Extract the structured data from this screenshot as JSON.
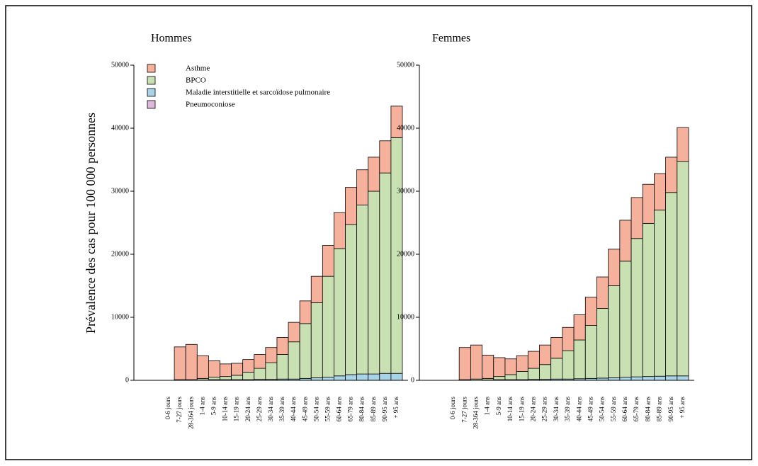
{
  "chart_data": [
    {
      "type": "bar",
      "title": "Hommes",
      "y_label": "Prévalence des cas pour 100 000 personnes",
      "categories": [
        "0-6 jours",
        "7-27 jours",
        "28-364 jours",
        "1-4 ans",
        "5-9 ans",
        "10-14 ans",
        "15-19 ans",
        "20-24 ans",
        "25-29 ans",
        "30-34 ans",
        "35-39 ans",
        "40-44 ans",
        "45-49 ans",
        "50-54 ans",
        "55-59 ans",
        "60-64 ans",
        "65-79 ans",
        "80-84 ans",
        "85-89 ans",
        "90-95 ans",
        "+ 95 ans"
      ],
      "ylim": [
        0,
        50000
      ],
      "yticks": [
        0,
        10000,
        20000,
        30000,
        40000,
        50000
      ],
      "legend": "top-left",
      "stacked": true,
      "series": [
        {
          "name": "Pneumoconiose",
          "color": "#dcb8dc",
          "values": [
            null,
            0,
            0,
            0,
            0,
            0,
            0,
            0,
            0,
            0,
            0,
            0,
            0,
            0,
            0,
            0,
            0,
            0,
            0,
            0,
            0
          ]
        },
        {
          "name": "Maladie interstitielle et sarcoïdose pulmonaire",
          "color": "#a9d3e6",
          "values": [
            null,
            0,
            0,
            50,
            100,
            100,
            100,
            100,
            150,
            150,
            200,
            200,
            300,
            400,
            500,
            700,
            900,
            1000,
            1000,
            1100,
            1100
          ]
        },
        {
          "name": "BPCO",
          "color": "#c8e0b2",
          "values": [
            null,
            100,
            100,
            250,
            400,
            500,
            700,
            1200,
            1750,
            2650,
            3900,
            5900,
            8700,
            11900,
            16000,
            20200,
            23800,
            26800,
            29000,
            31800,
            37400
          ]
        },
        {
          "name": "Asthme",
          "color": "#f5b19b",
          "values": [
            null,
            5200,
            5600,
            3600,
            2600,
            2000,
            1900,
            2000,
            2200,
            2400,
            2700,
            3100,
            3600,
            4200,
            4900,
            5700,
            5900,
            5600,
            5400,
            5100,
            5000
          ]
        }
      ]
    },
    {
      "type": "bar",
      "title": "Femmes",
      "categories": [
        "0-6 jours",
        "7-27 jours",
        "28-364 jours",
        "1-4 ans",
        "5-9 ans",
        "10-14 ans",
        "15-19 ans",
        "20-24 ans",
        "25-29 ans",
        "30-34 ans",
        "35-39 ans",
        "40-44 ans",
        "45-49 ans",
        "50-54 ans",
        "55-59 ans",
        "60-64 ans",
        "65-79 ans",
        "80-84 ans",
        "85-89 ans",
        "90-95 ans",
        "+ 95 ans"
      ],
      "ylim": [
        0,
        50000
      ],
      "yticks": [
        0,
        10000,
        20000,
        30000,
        40000,
        50000
      ],
      "stacked": true,
      "series": [
        {
          "color": "#dcb8dc",
          "values": [
            null,
            0,
            0,
            0,
            0,
            0,
            0,
            0,
            0,
            0,
            0,
            0,
            0,
            0,
            0,
            0,
            0,
            0,
            0,
            0,
            0
          ]
        },
        {
          "color": "#a9d3e6",
          "values": [
            null,
            0,
            0,
            50,
            100,
            100,
            100,
            150,
            150,
            200,
            200,
            250,
            300,
            350,
            400,
            500,
            550,
            600,
            650,
            700,
            700
          ]
        },
        {
          "color": "#c8e0b2",
          "values": [
            null,
            100,
            200,
            250,
            500,
            800,
            1300,
            1750,
            2350,
            3300,
            4500,
            6150,
            8400,
            11050,
            14600,
            18400,
            21950,
            24300,
            26350,
            29100,
            34000
          ]
        },
        {
          "color": "#f5b19b",
          "values": [
            null,
            5100,
            5400,
            3700,
            3000,
            2500,
            2500,
            2700,
            3100,
            3300,
            3700,
            4000,
            4500,
            5000,
            5800,
            6500,
            6500,
            6200,
            5800,
            5600,
            5400
          ]
        }
      ]
    }
  ]
}
